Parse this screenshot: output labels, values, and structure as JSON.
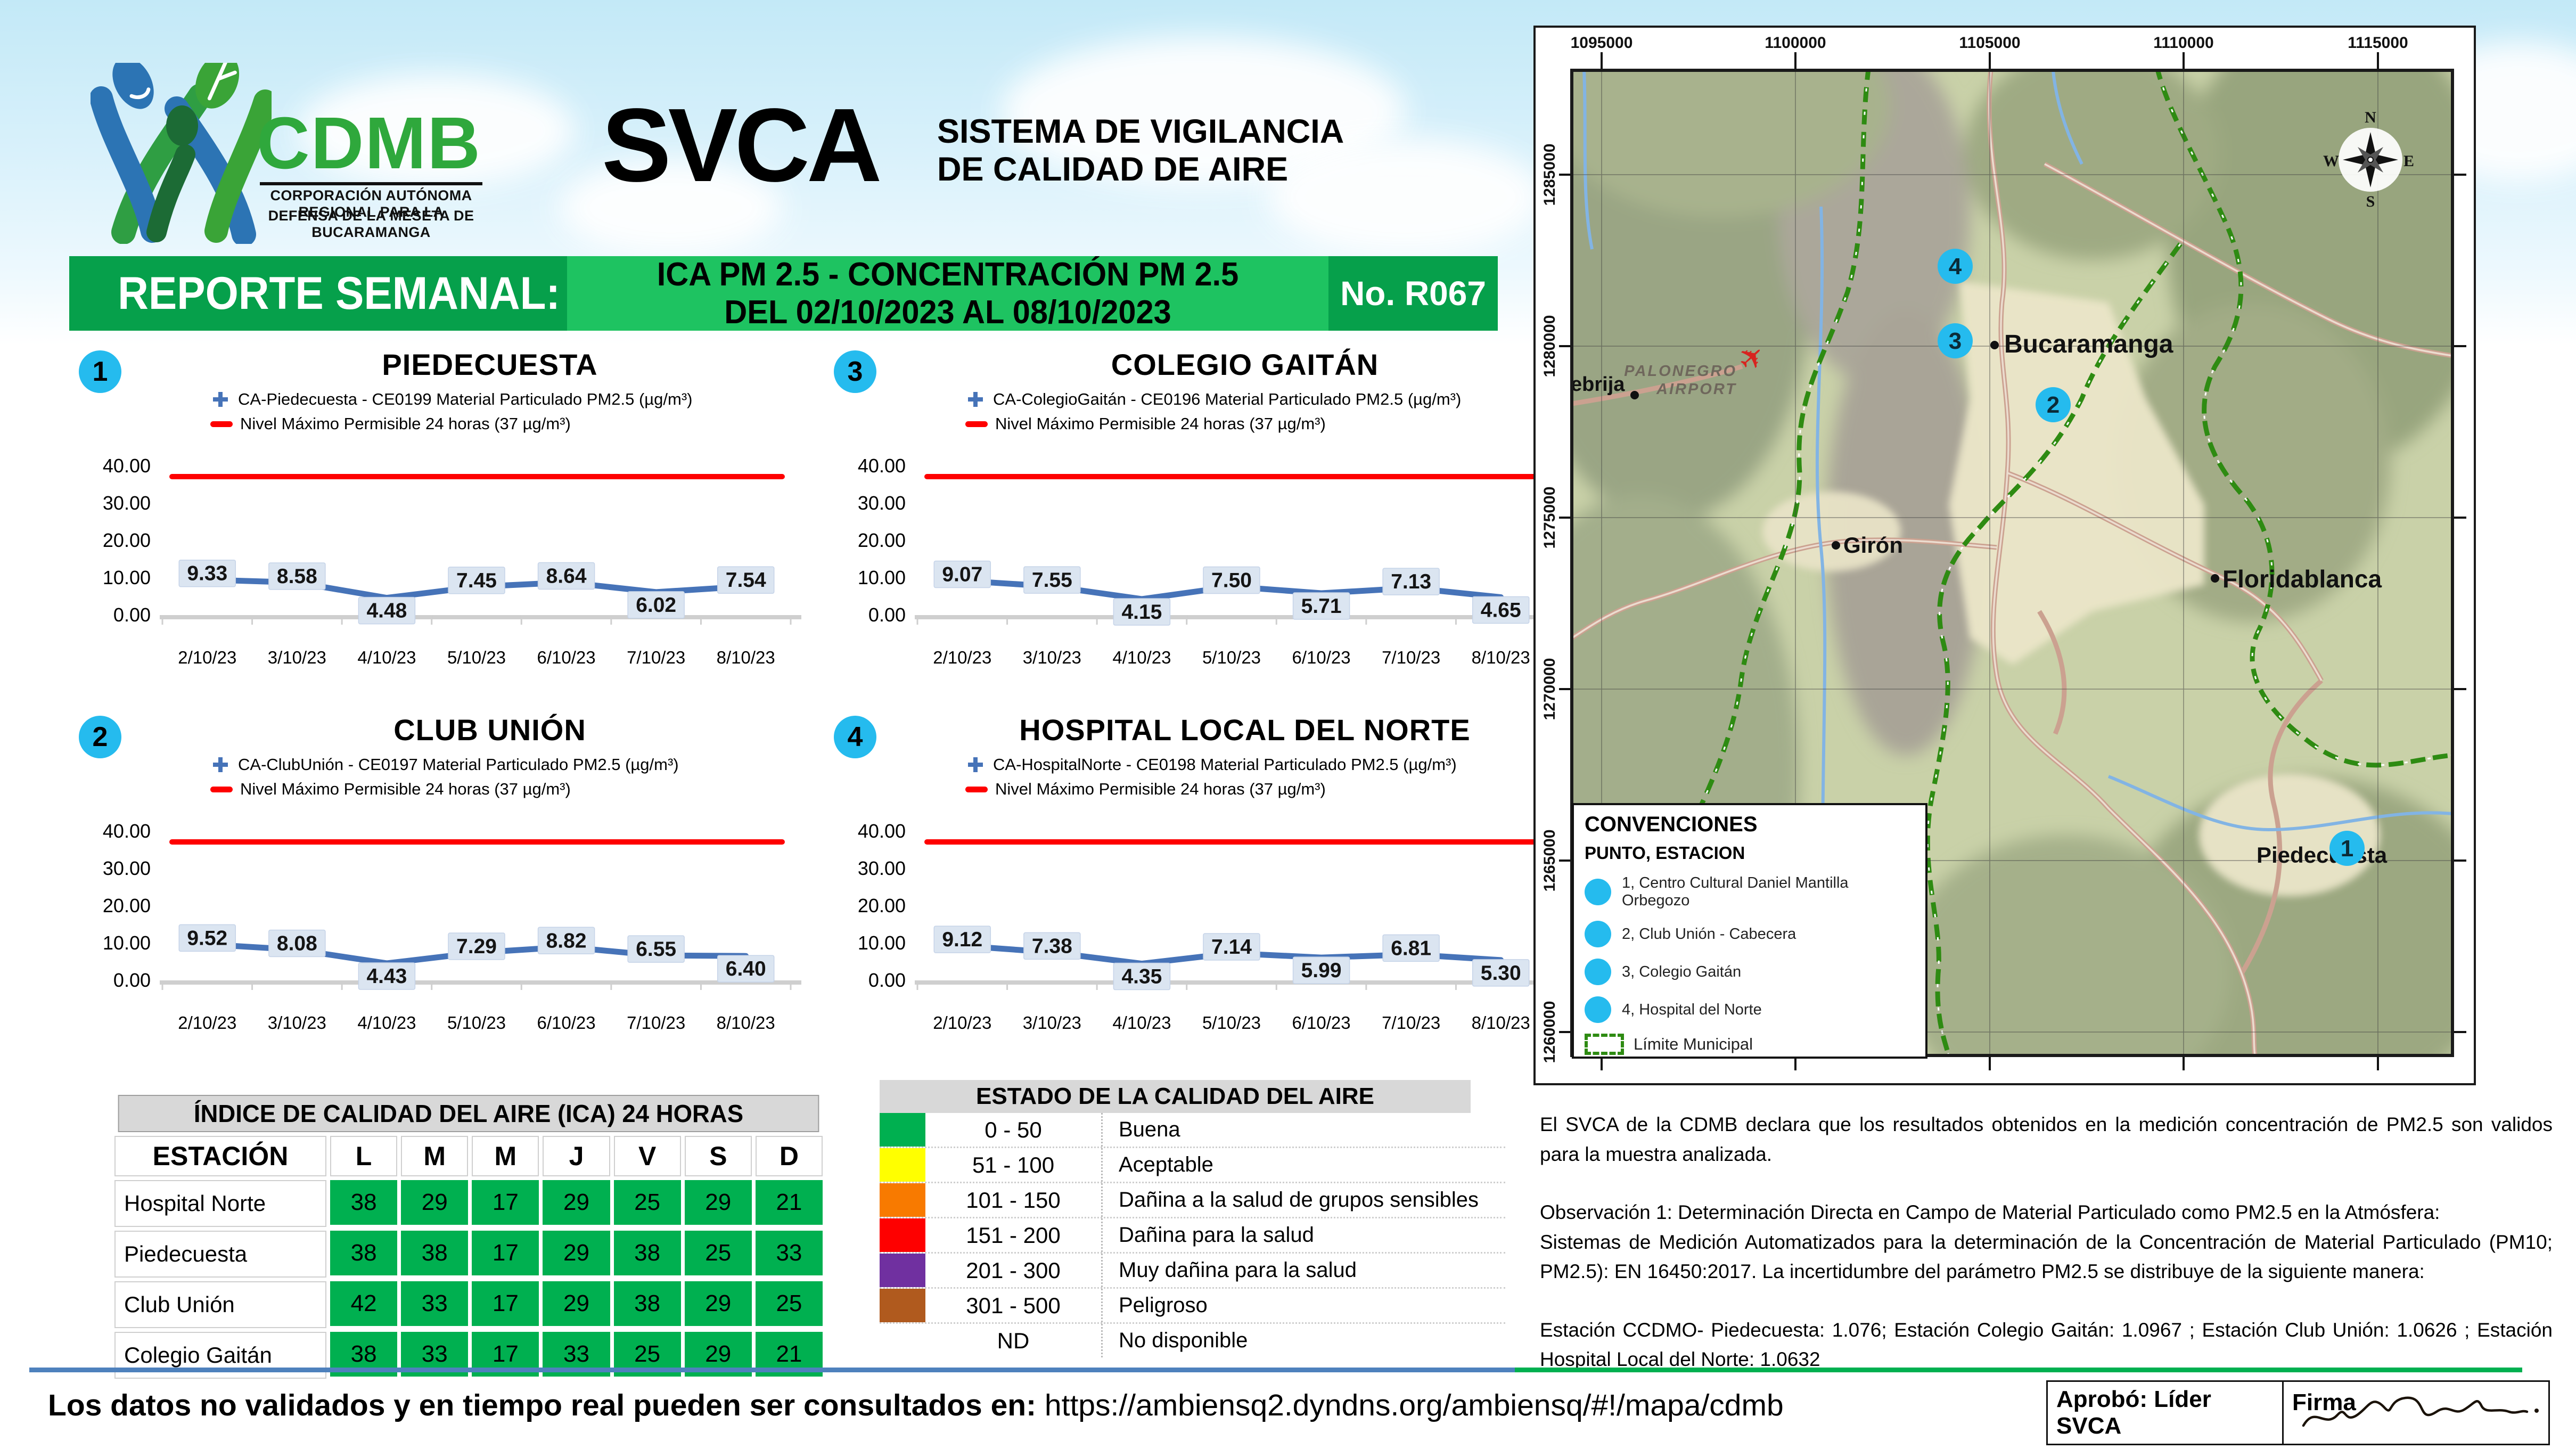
{
  "header": {
    "logo_acronym": "CDMB",
    "logo_caption_line1": "CORPORACIÓN AUTÓNOMA REGIONAL PARA LA",
    "logo_caption_line2": "DEFENSA DE LA MESETA DE BUCARAMANGA",
    "title": "SVCA",
    "subtitle_line1": "SISTEMA DE VIGILANCIA",
    "subtitle_line2": "DE CALIDAD DE AIRE"
  },
  "banner": {
    "left": "REPORTE SEMANAL:",
    "center_line1": "ICA PM 2.5 - CONCENTRACIÓN PM 2.5",
    "center_line2": "DEL 02/10/2023 AL 08/10/2023",
    "right": "No. R067"
  },
  "chart_data": [
    {
      "type": "line",
      "number": "1",
      "title": "PIEDECUESTA",
      "series_label": "CA-Piedecuesta - CE0199 Material Particulado PM2.5 (µg/m³)",
      "limit_label": "Nivel Máximo Permisible 24 horas (37 µg/m³)",
      "categories": [
        "2/10/23",
        "3/10/23",
        "4/10/23",
        "5/10/23",
        "6/10/23",
        "7/10/23",
        "8/10/23"
      ],
      "values": [
        9.33,
        8.58,
        4.48,
        7.45,
        8.64,
        6.02,
        7.54
      ],
      "limit_value": 37,
      "ylim": [
        0,
        40
      ],
      "yticks": [
        "40.00",
        "30.00",
        "20.00",
        "10.00",
        "0.00"
      ]
    },
    {
      "type": "line",
      "number": "2",
      "title": "CLUB UNIÓN",
      "series_label": "CA-ClubUnión - CE0197 Material Particulado PM2.5 (µg/m³)",
      "limit_label": "Nivel Máximo Permisible 24 horas (37 µg/m³)",
      "categories": [
        "2/10/23",
        "3/10/23",
        "4/10/23",
        "5/10/23",
        "6/10/23",
        "7/10/23",
        "8/10/23"
      ],
      "values": [
        9.52,
        8.08,
        4.43,
        7.29,
        8.82,
        6.55,
        6.4
      ],
      "limit_value": 37,
      "ylim": [
        0,
        40
      ],
      "yticks": [
        "40.00",
        "30.00",
        "20.00",
        "10.00",
        "0.00"
      ]
    },
    {
      "type": "line",
      "number": "3",
      "title": "COLEGIO GAITÁN",
      "series_label": "CA-ColegioGaitán  - CE0196 Material Particulado PM2.5 (µg/m³)",
      "limit_label": "Nivel Máximo Permisible 24 horas (37 µg/m³)",
      "categories": [
        "2/10/23",
        "3/10/23",
        "4/10/23",
        "5/10/23",
        "6/10/23",
        "7/10/23",
        "8/10/23"
      ],
      "values": [
        9.07,
        7.55,
        4.15,
        7.5,
        5.71,
        7.13,
        4.65
      ],
      "limit_value": 37,
      "ylim": [
        0,
        40
      ],
      "yticks": [
        "40.00",
        "30.00",
        "20.00",
        "10.00",
        "0.00"
      ]
    },
    {
      "type": "line",
      "number": "4",
      "title": "HOSPITAL LOCAL DEL NORTE",
      "series_label": "CA-HospitalNorte - CE0198 Material Particulado PM2.5 (µg/m³)",
      "limit_label": "Nivel Máximo Permisible 24 horas (37 µg/m³)",
      "categories": [
        "2/10/23",
        "3/10/23",
        "4/10/23",
        "5/10/23",
        "6/10/23",
        "7/10/23",
        "8/10/23"
      ],
      "values": [
        9.12,
        7.38,
        4.35,
        7.14,
        5.99,
        6.81,
        5.3
      ],
      "limit_value": 37,
      "ylim": [
        0,
        40
      ],
      "yticks": [
        "40.00",
        "30.00",
        "20.00",
        "10.00",
        "0.00"
      ]
    }
  ],
  "ica_table": {
    "title": "ÍNDICE DE CALIDAD DEL AIRE (ICA) 24 HORAS",
    "station_header": "ESTACIÓN",
    "day_headers": [
      "L",
      "M",
      "M",
      "J",
      "V",
      "S",
      "D"
    ],
    "rows": [
      {
        "station": "Hospital Norte",
        "values": [
          38,
          29,
          17,
          29,
          25,
          29,
          21
        ]
      },
      {
        "station": "Piedecuesta",
        "values": [
          38,
          38,
          17,
          29,
          38,
          25,
          33
        ]
      },
      {
        "station": "Club Unión",
        "values": [
          42,
          33,
          17,
          29,
          38,
          29,
          25
        ]
      },
      {
        "station": "Colegio Gaitán",
        "values": [
          38,
          33,
          17,
          33,
          25,
          29,
          21
        ]
      }
    ],
    "cell_color": "#00B050"
  },
  "estado_table": {
    "title": "ESTADO DE LA CALIDAD DEL AIRE",
    "rows": [
      {
        "color": "#00B050",
        "range": "0 - 50",
        "label": "Buena"
      },
      {
        "color": "#FFFF00",
        "range": "51 - 100",
        "label": "Aceptable"
      },
      {
        "color": "#F87A00",
        "range": "101 - 150",
        "label": "Dañina a la salud de grupos sensibles"
      },
      {
        "color": "#FE0000",
        "range": "151 - 200",
        "label": "Dañina para la salud"
      },
      {
        "color": "#7030A0",
        "range": "201 - 300",
        "label": "Muy dañina para la salud"
      },
      {
        "color": "#B05A1E",
        "range": "301 - 500",
        "label": "Peligroso"
      },
      {
        "color": null,
        "range": "ND",
        "label": "No disponible"
      }
    ]
  },
  "map": {
    "top_labels": [
      "1095000",
      "1100000",
      "1105000",
      "1110000",
      "1115000"
    ],
    "left_labels": [
      "1285000",
      "1280000",
      "1275000",
      "1270000",
      "1265000",
      "1260000"
    ],
    "cities": [
      "Bucaramanga",
      "Girón",
      "Floridablanca",
      "Piedecuesta",
      "ebrija"
    ],
    "airport_line1": "PALONEGRO",
    "airport_line2": "AIRPORT",
    "stations": [
      "1",
      "2",
      "3",
      "4"
    ],
    "compass": [
      "N",
      "E",
      "S",
      "W"
    ],
    "legend": {
      "title": "CONVENCIONES",
      "subtitle": "PUNTO, ESTACION",
      "items": [
        "1, Centro Cultural Daniel Mantilla Orbegozo",
        "2, Club Unión - Cabecera",
        "3, Colegio Gaitán",
        "4, Hospital del Norte"
      ],
      "limit_label": "Límite Municipal"
    }
  },
  "notes": {
    "p1": "El SVCA  de la CDMB declara que los resultados obtenidos en la medición concentración de PM2.5 son validos para la muestra  analizada.",
    "p2a": "Observación 1: Determinación Directa en Campo de Material Particulado como PM2.5 en la Atmósfera:",
    "p2b": "Sistemas de Medición Automatizados para la  determinación de la Concentración de Material Particulado (PM10; PM2.5): EN 16450:2017. La incertidumbre del parámetro PM2.5 se distribuye de la siguiente manera:",
    "p3": "Estación CCDMO- Piedecuesta: 1.076; Estación Colegio Gaitán: 1.0967 ; Estación Club Unión: 1.0626 ; Estación Hospital Local del Norte: 1.0632"
  },
  "footer": {
    "prefix": "Los datos no validados y en tiempo real pueden ser consultados en:",
    "url": "https://ambiensq2.dyndns.org/ambiensq/#!/mapa/cdmb",
    "approved_label": "Aprobó: Líder SVCA",
    "signature_label": "Firma"
  },
  "colors": {
    "banner_dark": "#06A04B",
    "banner_light": "#1EC361",
    "station_cyan": "#25BBEE",
    "chart_line_blue": "#4673B8",
    "limit_red": "#FE0000",
    "ica_green": "#00B050"
  }
}
